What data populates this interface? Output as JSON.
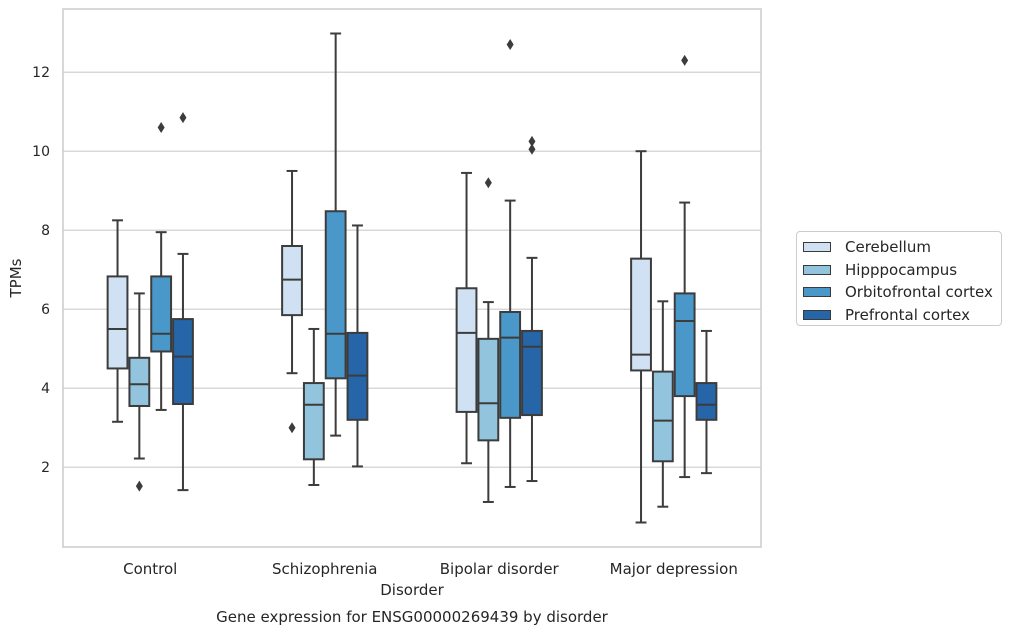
{
  "chart_data": {
    "type": "box",
    "title": "Gene expression for ENSG00000269439 by disorder",
    "xlabel": "Disorder",
    "ylabel": "TPMs",
    "categories": [
      "Control",
      "Schizophrenia",
      "Bipolar disorder",
      "Major depression"
    ],
    "y_ticks": [
      2,
      4,
      6,
      8,
      10,
      12
    ],
    "ylim": [
      -0.02,
      13.6
    ],
    "grid": "horizontal",
    "legend_position": "right",
    "series": [
      {
        "name": "Cerebellum",
        "color": "#cfe1f2",
        "boxes": [
          {
            "whisker_low": 3.15,
            "q1": 4.5,
            "median": 5.5,
            "q3": 6.83,
            "whisker_high": 8.25,
            "outliers": []
          },
          {
            "whisker_low": 4.38,
            "q1": 5.85,
            "median": 6.75,
            "q3": 7.6,
            "whisker_high": 9.5,
            "outliers": [
              3.0
            ]
          },
          {
            "whisker_low": 2.1,
            "q1": 3.4,
            "median": 5.4,
            "q3": 6.53,
            "whisker_high": 9.45,
            "outliers": []
          },
          {
            "whisker_low": 0.6,
            "q1": 4.45,
            "median": 4.85,
            "q3": 7.28,
            "whisker_high": 10.0,
            "outliers": []
          }
        ]
      },
      {
        "name": "Hipppocampus",
        "color": "#93c4de",
        "boxes": [
          {
            "whisker_low": 2.22,
            "q1": 3.55,
            "median": 4.1,
            "q3": 4.77,
            "whisker_high": 6.4,
            "outliers": [
              1.52
            ]
          },
          {
            "whisker_low": 1.55,
            "q1": 2.2,
            "median": 3.58,
            "q3": 4.13,
            "whisker_high": 5.5,
            "outliers": []
          },
          {
            "whisker_low": 1.12,
            "q1": 2.68,
            "median": 3.62,
            "q3": 5.25,
            "whisker_high": 6.18,
            "outliers": [
              9.2
            ]
          },
          {
            "whisker_low": 1.0,
            "q1": 2.15,
            "median": 3.18,
            "q3": 4.42,
            "whisker_high": 6.2,
            "outliers": []
          }
        ]
      },
      {
        "name": "Orbitofrontal cortex",
        "color": "#4a98c9",
        "boxes": [
          {
            "whisker_low": 3.45,
            "q1": 4.93,
            "median": 5.38,
            "q3": 6.83,
            "whisker_high": 7.95,
            "outliers": [
              10.6
            ]
          },
          {
            "whisker_low": 2.8,
            "q1": 4.25,
            "median": 5.38,
            "q3": 8.48,
            "whisker_high": 12.98,
            "outliers": []
          },
          {
            "whisker_low": 1.5,
            "q1": 3.25,
            "median": 5.28,
            "q3": 5.93,
            "whisker_high": 8.75,
            "outliers": [
              12.7
            ]
          },
          {
            "whisker_low": 1.75,
            "q1": 3.8,
            "median": 5.7,
            "q3": 6.4,
            "whisker_high": 8.7,
            "outliers": [
              12.3
            ]
          }
        ]
      },
      {
        "name": "Prefrontal cortex",
        "color": "#2565a8",
        "boxes": [
          {
            "whisker_low": 1.42,
            "q1": 3.6,
            "median": 4.8,
            "q3": 5.75,
            "whisker_high": 7.4,
            "outliers": [
              10.85
            ]
          },
          {
            "whisker_low": 2.02,
            "q1": 3.2,
            "median": 4.32,
            "q3": 5.4,
            "whisker_high": 8.12,
            "outliers": []
          },
          {
            "whisker_low": 1.65,
            "q1": 3.32,
            "median": 5.05,
            "q3": 5.45,
            "whisker_high": 7.3,
            "outliers": [
              10.05,
              10.25
            ]
          },
          {
            "whisker_low": 1.85,
            "q1": 3.2,
            "median": 3.58,
            "q3": 4.13,
            "whisker_high": 5.45,
            "outliers": []
          }
        ]
      }
    ]
  }
}
